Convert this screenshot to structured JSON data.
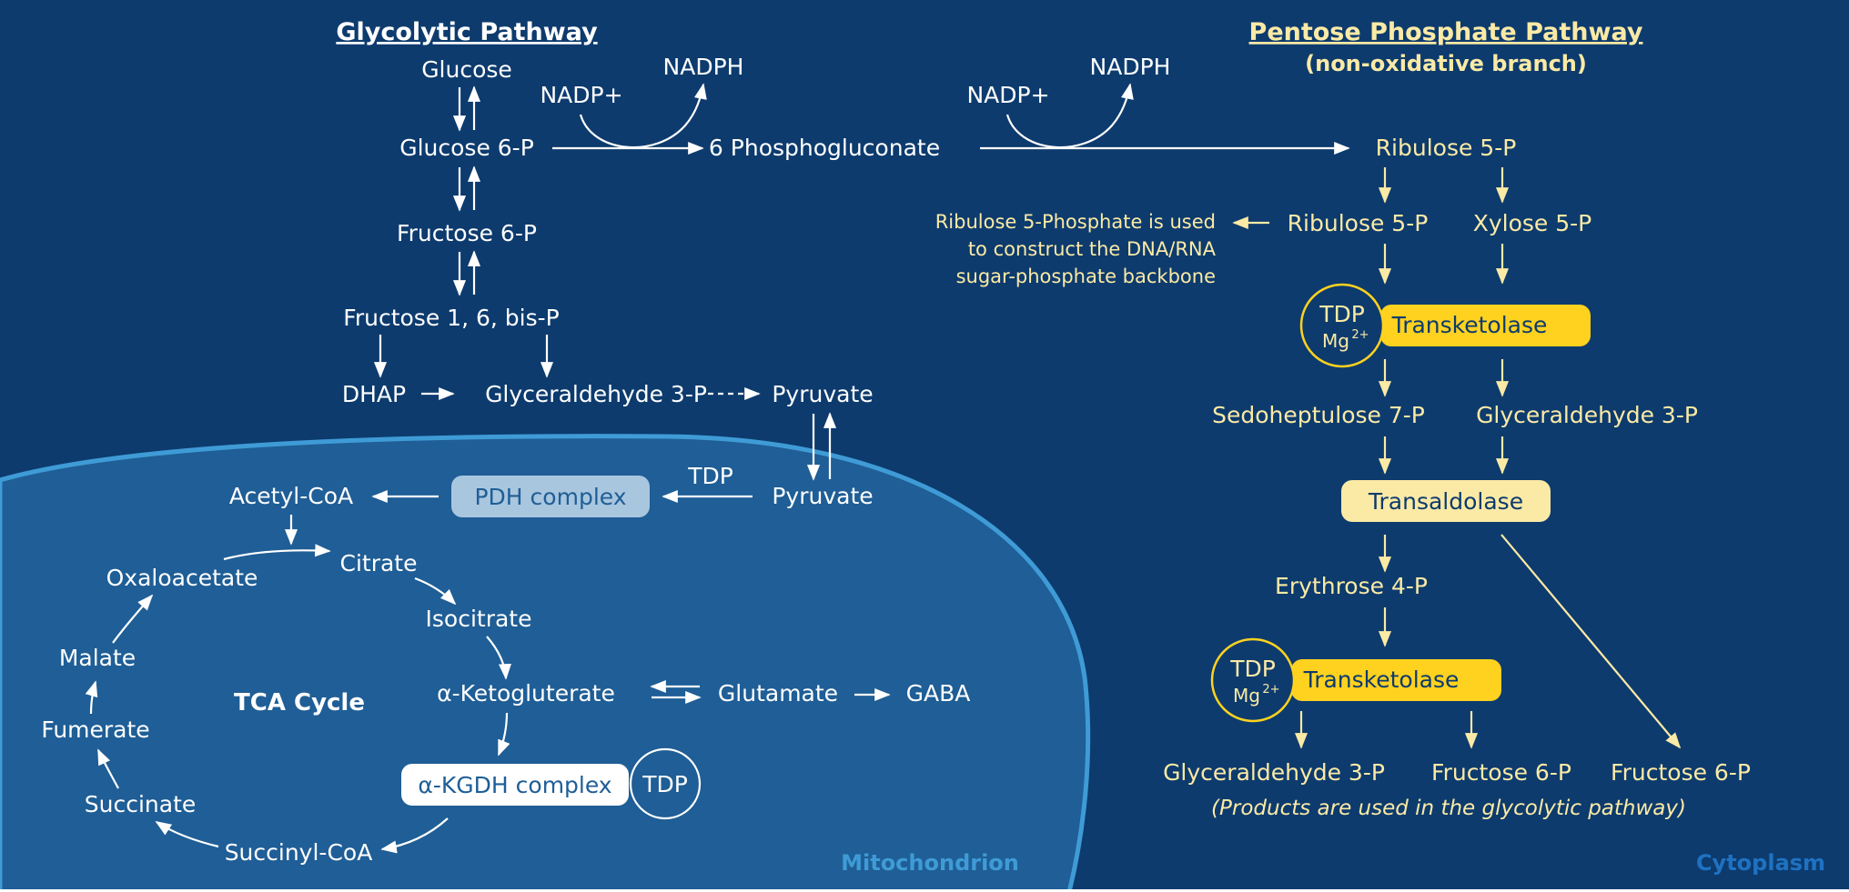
{
  "titles": {
    "glycolytic": "Glycolytic Pathway",
    "pentose": "Pentose Phosphate Pathway",
    "pentose_sub": "(non-oxidative branch)"
  },
  "glycolysis": {
    "glucose": "Glucose",
    "g6p": "Glucose 6-P",
    "f6p": "Fructose 6-P",
    "f16bp": "Fructose 1, 6, bis-P",
    "dhap": "DHAP",
    "g3p": "Glyceraldehyde 3-P",
    "pyruvate": "Pyruvate"
  },
  "oxidative": {
    "nadp1": "NADP+",
    "nadph1": "NADPH",
    "phosphogluconate": "6 Phosphogluconate",
    "nadp2": "NADP+",
    "nadph2": "NADPH"
  },
  "pentose": {
    "ribulose_top": "Ribulose 5-P",
    "ribulose": "Ribulose 5-P",
    "xylose": "Xylose 5-P",
    "note": [
      "Ribulose 5-Phosphate is used",
      "to construct the DNA/RNA",
      "sugar-phosphate backbone"
    ],
    "tdp": "TDP",
    "mg": "Mg",
    "mg_sup": "2+",
    "transketolase": "Transketolase",
    "sedoheptulose": "Sedoheptulose 7-P",
    "g3p": "Glyceraldehyde 3-P",
    "transaldolase": "Transaldolase",
    "erythrose": "Erythrose 4-P",
    "tdp2": "TDP",
    "mg2": "Mg",
    "mg2_sup": "2+",
    "transketolase2": "Transketolase",
    "product_g3p": "Glyceraldehyde 3-P",
    "product_f6p_a": "Fructose 6-P",
    "product_f6p_b": "Fructose 6-P",
    "products_note": "(Products are used in the glycolytic pathway)"
  },
  "mito": {
    "pyruvate": "Pyruvate",
    "tdp": "TDP",
    "pdh": "PDH complex",
    "acetyl": "Acetyl-CoA",
    "citrate": "Citrate",
    "isocitrate": "Isocitrate",
    "akg": "α-Ketogluterate",
    "glutamate": "Glutamate",
    "gaba": "GABA",
    "akgdh": "α-KGDH complex",
    "tdp2": "TDP",
    "succinyl": "Succinyl-CoA",
    "succinate": "Succinate",
    "fumerate": "Fumerate",
    "malate": "Malate",
    "oxaloacetate": "Oxaloacetate",
    "tca": "TCA Cycle"
  },
  "regions": {
    "mitochondrion": "Mitochondrion",
    "cytoplasm": "Cytoplasm"
  },
  "colors": {
    "background": "#0d3b6e",
    "mitochondrion_fill": "#1f5e96",
    "mitochondrion_border": "#3f9bd6",
    "pale_yellow": "#fbeaa5",
    "enzyme_yellow": "#ffd21f",
    "pdh_box": "#a9c6df",
    "region_label": "#3f9bd6"
  }
}
